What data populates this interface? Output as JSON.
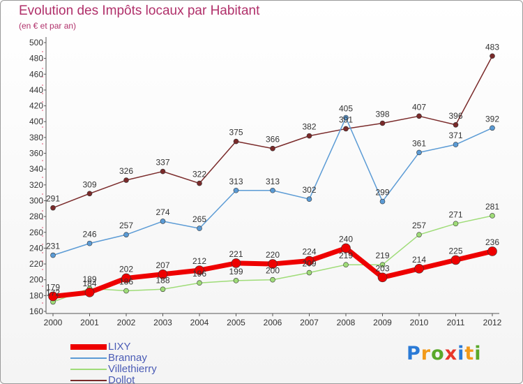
{
  "title": "Evolution des Impôts locaux par Habitant",
  "subtitle": "(en € et par an)",
  "logo": {
    "letters": [
      "P",
      "r",
      "o",
      "x",
      "i",
      "t",
      "i"
    ],
    "colors": [
      "#2a7ad6",
      "#f29a1a",
      "#5aa82a",
      "#e8372b",
      "#2a7ad6",
      "#f29a1a",
      "#5aa82a"
    ]
  },
  "chart_data": {
    "type": "line",
    "categories": [
      "2000",
      "2001",
      "2002",
      "2003",
      "2004",
      "2005",
      "2006",
      "2007",
      "2008",
      "2009",
      "2010",
      "2011",
      "2012"
    ],
    "ylim": [
      160,
      500
    ],
    "yticks": [
      160,
      180,
      200,
      220,
      240,
      260,
      280,
      300,
      320,
      340,
      360,
      380,
      400,
      420,
      440,
      460,
      480,
      500
    ],
    "grid": false,
    "legend_position": "bottom-left",
    "series": [
      {
        "name": "LIXY",
        "color": "#ee0000",
        "values": [
          179,
          184,
          202,
          207,
          212,
          221,
          220,
          224,
          240,
          203,
          214,
          225,
          236
        ]
      },
      {
        "name": "Brannay",
        "color": "#5b9bd5",
        "values": [
          231,
          246,
          257,
          274,
          265,
          313,
          313,
          302,
          405,
          299,
          361,
          371,
          392
        ]
      },
      {
        "name": "Villethierry",
        "color": "#9fdc78",
        "values": [
          172,
          189,
          186,
          188,
          196,
          199,
          200,
          209,
          219,
          219,
          257,
          271,
          281
        ]
      },
      {
        "name": "Dollot",
        "color": "#7a2a2a",
        "values": [
          291,
          309,
          326,
          337,
          322,
          375,
          366,
          382,
          391,
          398,
          407,
          396,
          483
        ]
      }
    ]
  }
}
